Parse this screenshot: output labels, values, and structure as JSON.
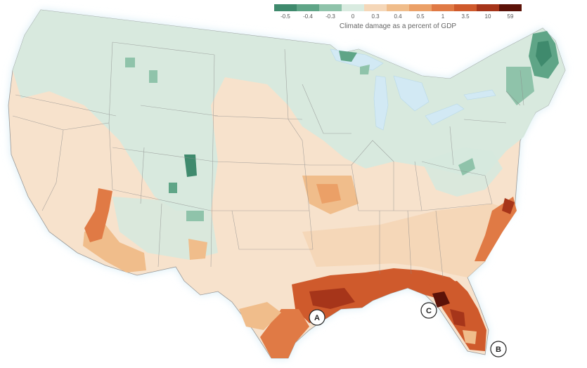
{
  "legend": {
    "title": "Climate damage as a percent of GDP",
    "ticks": [
      "-0.5",
      "-0.4",
      "-0.3",
      "0",
      "0.3",
      "0.4",
      "0.5",
      "1",
      "3.5",
      "10",
      "59"
    ],
    "colors": [
      "#3f8a6d",
      "#5fa587",
      "#8fc3aa",
      "#d9ebe0",
      "#f5d7b8",
      "#f0bd8b",
      "#eba067",
      "#e07a45",
      "#cf5a2c",
      "#a6351a",
      "#5c1208"
    ]
  },
  "markers": {
    "a": "A",
    "b": "B",
    "c": "C"
  },
  "colors": {
    "land_neutral": "#f7e2cc",
    "land_cool": "#d6e9de",
    "state_border": "#8a8a8a",
    "coast_glow": "#d6ecf5",
    "lake": "#d2e9f4"
  }
}
